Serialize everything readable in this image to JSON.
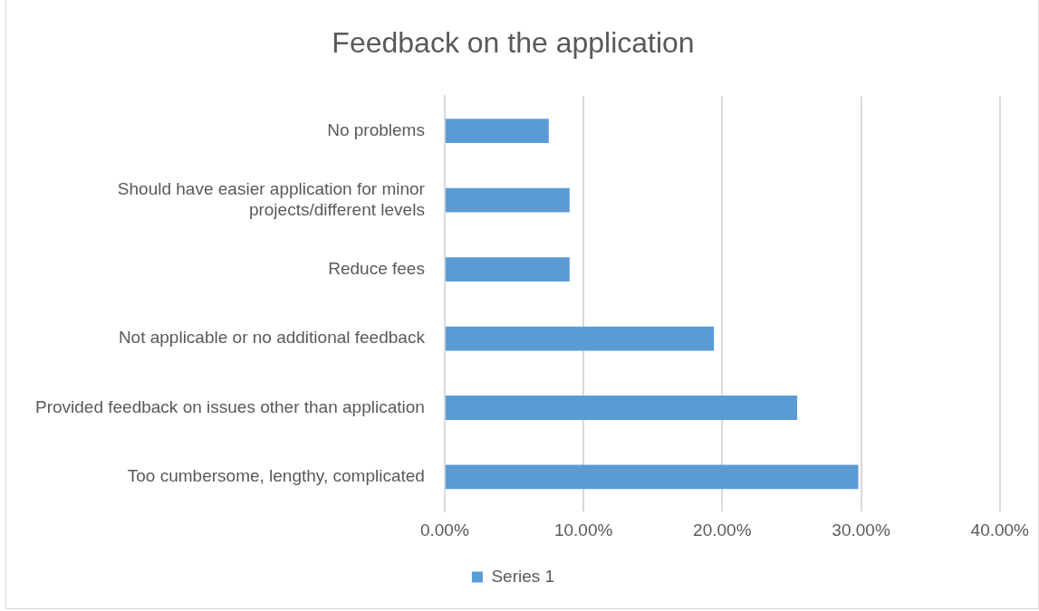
{
  "chart_data": {
    "type": "bar",
    "orientation": "horizontal",
    "title": "Feedback on the application",
    "categories": [
      "No problems",
      "Should have easier application for minor projects/different levels",
      "Reduce fees",
      "Not applicable or no additional feedback",
      "Provided feedback on issues other than application",
      "Too cumbersome, lengthy, complicated"
    ],
    "series": [
      {
        "name": "Series 1",
        "color": "#5b9bd5",
        "values": [
          7.5,
          9.0,
          9.0,
          19.4,
          25.4,
          29.8
        ]
      }
    ],
    "xlim": [
      0,
      40
    ],
    "xticks": [
      {
        "value": 0,
        "label": "0.00%"
      },
      {
        "value": 10,
        "label": "10.00%"
      },
      {
        "value": 20,
        "label": "20.00%"
      },
      {
        "value": 30,
        "label": "30.00%"
      },
      {
        "value": 40,
        "label": "40.00%"
      }
    ],
    "grid": "x",
    "legend": "bottom"
  }
}
